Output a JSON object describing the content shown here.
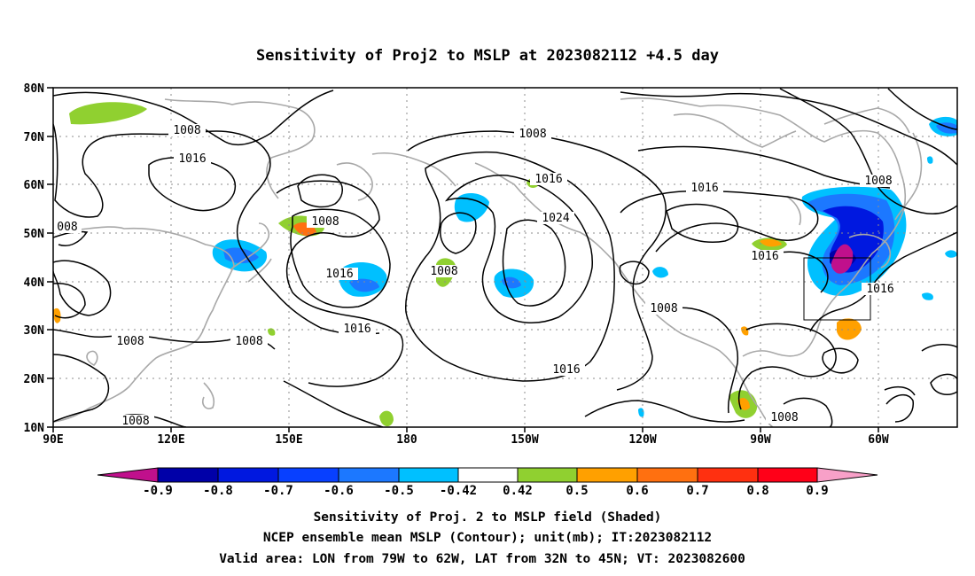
{
  "title": "Sensitivity of Proj2 to MSLP at 2023082112 +4.5 day",
  "map": {
    "lat_labels": [
      "80N",
      "70N",
      "60N",
      "50N",
      "40N",
      "30N",
      "20N",
      "10N"
    ],
    "lon_labels": [
      "90E",
      "120E",
      "150E",
      "180",
      "150W",
      "120W",
      "90W",
      "60W"
    ],
    "lon_range": [
      "90E",
      "45W"
    ],
    "lat_range": [
      "10N",
      "80N"
    ],
    "valid_box": {
      "lon": [
        "79W",
        "62W"
      ],
      "lat": [
        "32N",
        "45N"
      ]
    },
    "contour_labels": [
      {
        "id": "c1",
        "text": "1008"
      },
      {
        "id": "c2",
        "text": "1016"
      },
      {
        "id": "c3",
        "text": "008"
      },
      {
        "id": "c4",
        "text": "1008"
      },
      {
        "id": "c5",
        "text": "1016"
      },
      {
        "id": "c6",
        "text": "1008"
      },
      {
        "id": "c7",
        "text": "1008"
      },
      {
        "id": "c8",
        "text": "1016"
      },
      {
        "id": "c9",
        "text": "1008"
      },
      {
        "id": "c10",
        "text": "1016"
      },
      {
        "id": "c11",
        "text": "1024"
      },
      {
        "id": "c12",
        "text": "1008"
      },
      {
        "id": "c13",
        "text": "1016"
      },
      {
        "id": "c14",
        "text": "1016"
      },
      {
        "id": "c15",
        "text": "1016"
      },
      {
        "id": "c16",
        "text": "1008"
      },
      {
        "id": "c17",
        "text": "1008"
      },
      {
        "id": "c18",
        "text": "1016"
      },
      {
        "id": "c19",
        "text": "1008"
      },
      {
        "id": "c20",
        "text": "1008"
      }
    ]
  },
  "colorbar": {
    "labels": [
      "-0.9",
      "-0.8",
      "-0.7",
      "-0.6",
      "-0.5",
      "-0.42",
      "0.42",
      "0.5",
      "0.6",
      "0.7",
      "0.8",
      "0.9"
    ],
    "colors": [
      "#c0108c",
      "#0000a8",
      "#0018e0",
      "#0840ff",
      "#1c78ff",
      "#00c0ff",
      "#ffffff",
      "#90d030",
      "#ffa000",
      "#ff7010",
      "#ff3010",
      "#ff0018",
      "#f8a0c8"
    ]
  },
  "footer": {
    "line1": "Sensitivity of Proj. 2 to MSLP field (Shaded)",
    "line2": "NCEP ensemble mean MSLP (Contour); unit(mb); IT:2023082112",
    "line3": "Valid area: LON from 79W to 62W, LAT from 32N to 45N; VT: 2023082600"
  }
}
